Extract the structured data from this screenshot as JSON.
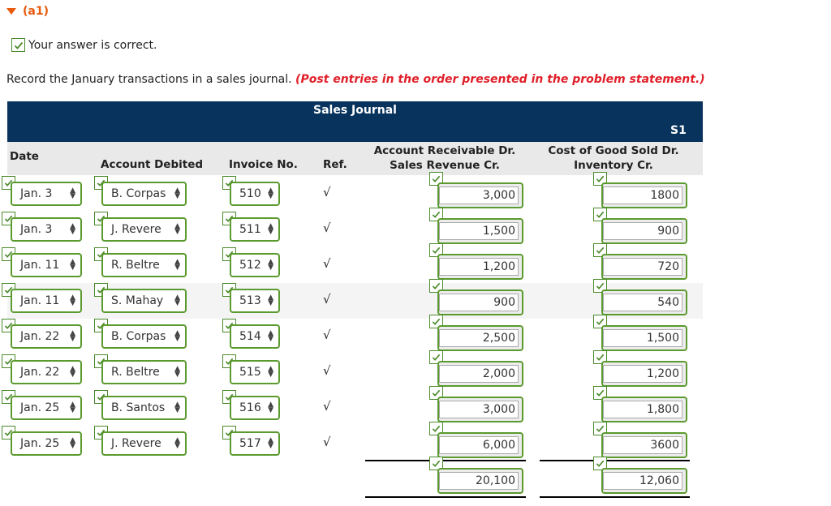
{
  "section": {
    "label": "(a1)"
  },
  "status": {
    "text": "Your answer is correct."
  },
  "instruction": {
    "text": "Record the January transactions in a sales journal. ",
    "note": "(Post entries in the order presented in the problem statement.)"
  },
  "journal": {
    "title": "Sales Journal",
    "ref": "S1",
    "headers": {
      "date": "Date",
      "account": "Account Debited",
      "invoice": "Invoice No.",
      "ref": "Ref.",
      "ar_line1": "Account Receivable Dr.",
      "ar_line2": "Sales Revenue Cr.",
      "cogs_line1": "Cost of Good Sold Dr.",
      "cogs_line2": "Inventory Cr."
    },
    "rows": [
      {
        "date": "Jan. 3",
        "account": "B. Corpas",
        "invoice": "510",
        "ref": "√",
        "ar": "3,000",
        "cogs": "1800"
      },
      {
        "date": "Jan. 3",
        "account": "J. Revere",
        "invoice": "511",
        "ref": "√",
        "ar": "1,500",
        "cogs": "900"
      },
      {
        "date": "Jan. 11",
        "account": "R. Beltre",
        "invoice": "512",
        "ref": "√",
        "ar": "1,200",
        "cogs": "720"
      },
      {
        "date": "Jan. 11",
        "account": "S. Mahay",
        "invoice": "513",
        "ref": "√",
        "ar": "900",
        "cogs": "540"
      },
      {
        "date": "Jan. 22",
        "account": "B. Corpas",
        "invoice": "514",
        "ref": "√",
        "ar": "2,500",
        "cogs": "1,500"
      },
      {
        "date": "Jan. 22",
        "account": "R. Beltre",
        "invoice": "515",
        "ref": "√",
        "ar": "2,000",
        "cogs": "1,200"
      },
      {
        "date": "Jan. 25",
        "account": "B. Santos",
        "invoice": "516",
        "ref": "√",
        "ar": "3,000",
        "cogs": "1,800"
      },
      {
        "date": "Jan. 25",
        "account": "J. Revere",
        "invoice": "517",
        "ref": "√",
        "ar": "6,000",
        "cogs": "3600"
      }
    ],
    "totals": {
      "ar": "20,100",
      "cogs": "12,060"
    }
  }
}
